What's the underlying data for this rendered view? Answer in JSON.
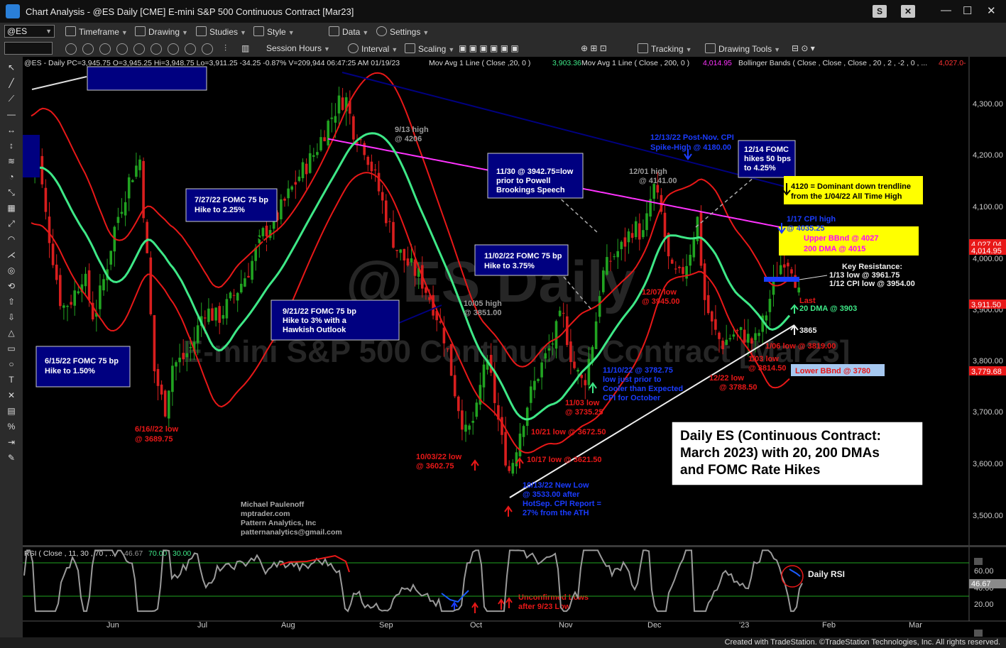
{
  "window": {
    "title": "Chart Analysis - @ES Daily [CME] E-mini S&P 500 Continuous Contract [Mar23]",
    "btn_s": "S",
    "btn_close": "✕"
  },
  "toolbar1": {
    "symbol": "@ES",
    "timeframe": "Timeframe",
    "drawing": "Drawing",
    "studies": "Studies",
    "style": "Style",
    "data": "Data",
    "settings": "Settings"
  },
  "toolbar2": {
    "session_hours": "Session Hours",
    "interval": "Interval",
    "scaling": "Scaling",
    "tracking": "Tracking",
    "drawing_tools": "Drawing Tools"
  },
  "chart_header": {
    "symbol_info": "@ES - Daily  PC=3,945.75  O=3,945.25  Hi=3,948.75  Lo=3,911.25  -34.25  -0.87%  V=209,944  06:47:25 AM  01/19/23",
    "ma20": "Mov Avg 1 Line ( Close ,20,  0 )",
    "ma20_val": "3,903.36",
    "ma200": "Mov Avg 1 Line ( Close , 200,  0 )",
    "ma200_val": "4,014.95",
    "bb": "Bollinger Bands ( Close , Close , Close , 20 , 2 , -2 , 0 , ...",
    "bb_val": "4,027.0-"
  },
  "watermark": {
    "line1": "@ES Daily",
    "line2": "E-mini S&P 500 Continuous Contract [Mar23]"
  },
  "price_axis": {
    "labels": [
      "4,300.00",
      "4,200.00",
      "4,100.00",
      "4,000.00",
      "3,900.00",
      "3,800.00",
      "3,700.00",
      "3,600.00",
      "3,500.00"
    ],
    "tags": {
      "upper_bb": "4,027.04",
      "ma200": "4,014.95",
      "last": "3,911.50",
      "lower_bb": "3,779.68"
    }
  },
  "rsi_axis": {
    "labels": [
      "60.00",
      "40.00",
      "20.00"
    ],
    "tag": "46.67"
  },
  "rsi_header": {
    "label": "RSI ( Close , 11,  30 ,  70 , ...",
    "v1": "46.67",
    "v2": "70.00",
    "v3": "30.00"
  },
  "time_axis": [
    "Jun",
    "Jul",
    "Aug",
    "Sep",
    "Oct",
    "Nov",
    "Dec",
    "'23",
    "Feb",
    "Mar"
  ],
  "colors": {
    "bg": "#000000",
    "up": "#21a321",
    "down": "#d81e1e",
    "ma20": "#3ee887",
    "ma200": "#ff33ff",
    "bb": "#e81818",
    "box": "#000080"
  },
  "annotations": {
    "fomc_615": "6/15/22 FOMC 75 bp\nHike to 1.50%",
    "fomc_727": "7/27/22 FOMC 75 bp\nHike to 2.25%",
    "fomc_921": "9/21/22 FOMC 75 bp\nHike to 3% with a\nHawkish Outlook",
    "fomc_1102": "11/02/22 FOMC 75 bp\nHike to 3.75%",
    "note_1130": "11/30 @ 3942.75=low\nprior to Powell\nBrookings Speech",
    "fomc_1214": "12/14 FOMC\nhikes 50 bps\nto 4.25%",
    "trendline": "4120 = Dominant down trendline\nfrom the 1/04/22 All Time High",
    "upper_bb": "Upper BBnd @ 4027\n200 DMA @ 4015",
    "lower_bb": "Lower BBnd @ 3780",
    "cpi_1213": "12/13/22 Post-Nov. CPI\nSpike-High @ 4180.00",
    "cpi_117": "1/17 CPI high\n@ 4035.25",
    "low_616": "6/16//22 low\n@ 3689.75",
    "high_913": "9/13 high\n@ 4206",
    "high_1005": "10/05 high\n@ 3851.00",
    "high_1201": "12/01 high\n@ 4141.00",
    "low_1003": "10/03/22 low\n@ 3602.75",
    "low_1013": "10/13/22  New Low\n@ 3533.00 after\nHotSep.  CPI Report =\n27% from the ATH",
    "low_1017": "10/17 low @ 3621.50",
    "low_1021": "10/21 low @ 3672.50",
    "low_1103": "11/03 low\n@ 3735.25",
    "low_1110": "11/10/22 @ 3782.75\nlow just prior to\nCooler than Expected\nCPI for October",
    "low_1207": "12/07 low\n@ 3945.00",
    "low_1222": "12/22 low\n@ 3788.50",
    "low_103": "1/03 low\n@ 3814.50",
    "low_106": "1/06 low @ 3819.00",
    "key_res": "Key Resistance:\n1/13 low @ 3961.75\n1/12 CPI low @ 3954.00",
    "last": "Last",
    "dma20": "20 DMA @ 3903",
    "level_3865": "3865",
    "title_box": "Daily ES (Continuous Contract:\nMarch 2023) with 20, 200 DMAs\nand FOMC Rate Hikes",
    "credit": "Michael Paulenoff\nmptrader.com\nPattern Analytics, Inc\npatternanalytics@gmail.com",
    "daily_rsi": "Daily RSI",
    "unconfirmed": "Unconfirmed Lows\nafter 9/23 Low"
  },
  "footer": "Created with TradeStation. ©TradeStation Technologies, Inc. All rights reserved."
}
